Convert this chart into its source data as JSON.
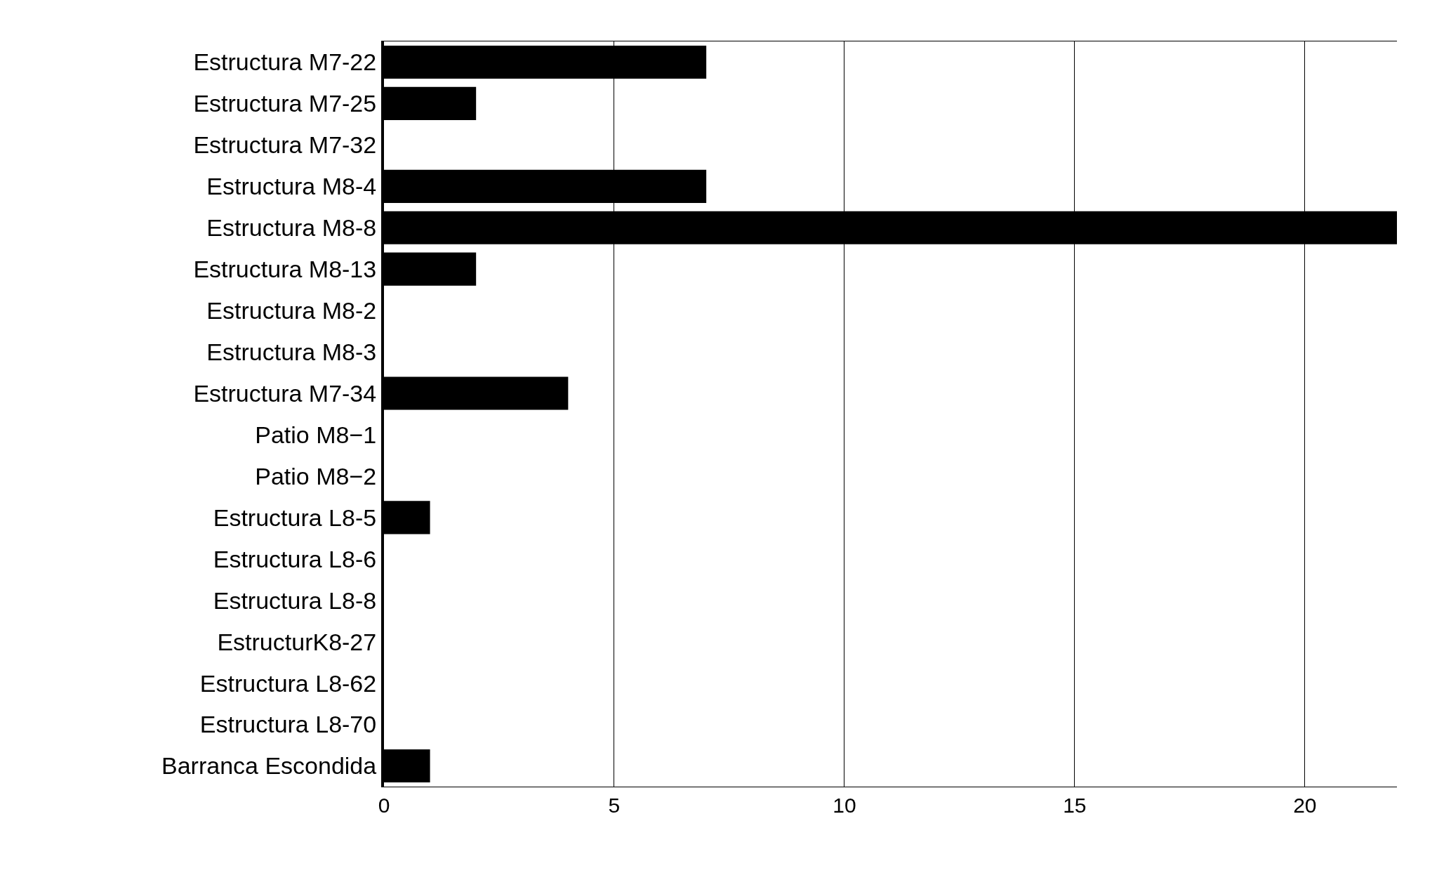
{
  "chart_data": {
    "type": "bar",
    "orientation": "horizontal",
    "categories": [
      "Estructura M7-22",
      "Estructura M7-25",
      "Estructura M7-32",
      "Estructura M8-4",
      "Estructura M8-8",
      "Estructura M8-13",
      "Estructura M8-2",
      "Estructura M8-3",
      "Estructura M7-34",
      "Patio M8−1",
      "Patio M8−2",
      "Estructura L8-5",
      "Estructura L8-6",
      "Estructura L8-8",
      "EstructurK8-27",
      "Estructura L8-62",
      "Estructura L8-70",
      "Barranca Escondida"
    ],
    "values": [
      7,
      2,
      0,
      7,
      22,
      2,
      0,
      0,
      4,
      0,
      0,
      1,
      0,
      0,
      0,
      0,
      0,
      1
    ],
    "color": "#000000",
    "xlim": [
      0,
      22
    ],
    "xticks": [
      0,
      5,
      10,
      15,
      20
    ],
    "grid": "x"
  }
}
